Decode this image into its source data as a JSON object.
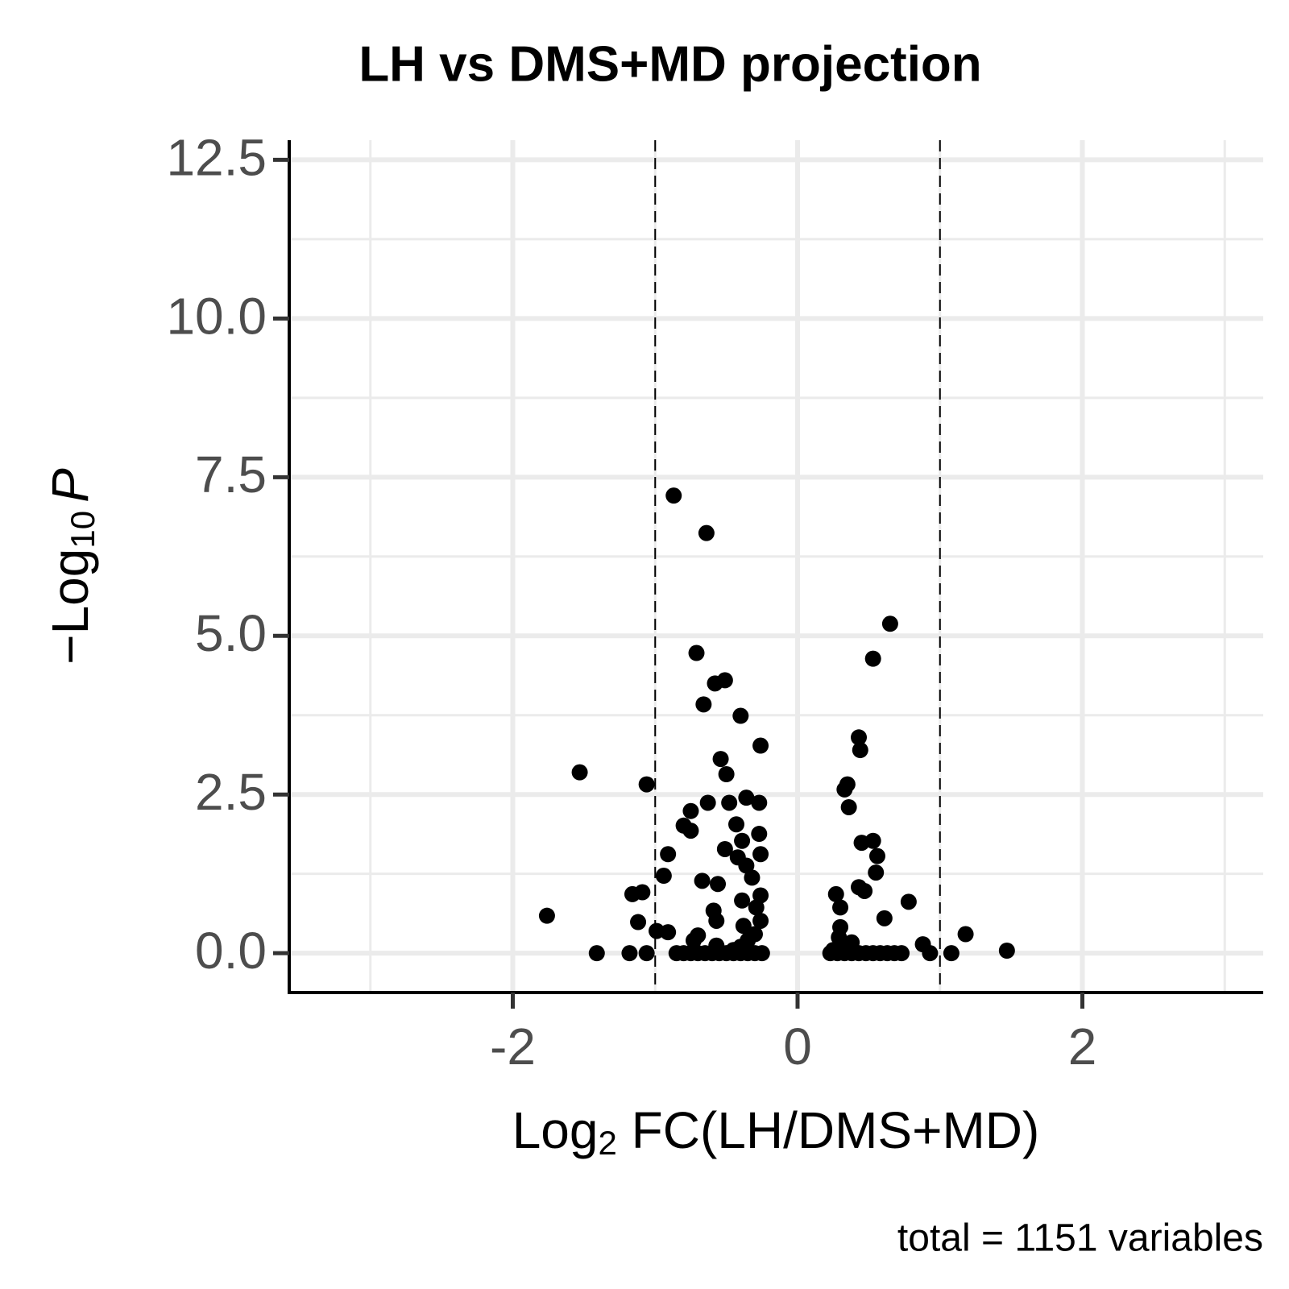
{
  "chart_data": {
    "type": "scatter",
    "title": "LH vs DMS+MD projection",
    "x_label": {
      "text": "Log",
      "subscript": "2",
      "rest": " FC(LH/DMS+MD)"
    },
    "y_label": {
      "text": "−Log",
      "subscript": "10",
      "italic": "P"
    },
    "caption": "total = 1151 variables",
    "color": "#000000",
    "xlim": [
      -3.57,
      3.27
    ],
    "ylim": [
      -0.62,
      12.81
    ],
    "xticks": [
      -2,
      0,
      2
    ],
    "yticks": [
      {
        "value": 0,
        "label": "0.0"
      },
      {
        "value": 2.5,
        "label": "2.5"
      },
      {
        "value": 5,
        "label": "5.0"
      },
      {
        "value": 7.5,
        "label": "7.5"
      },
      {
        "value": 10,
        "label": "10.0"
      },
      {
        "value": 12.5,
        "label": "12.5"
      }
    ],
    "x_minor_grid": [
      -3,
      -1,
      1,
      3
    ],
    "y_minor_grid": [
      1.25,
      3.75,
      6.25,
      8.75,
      11.25
    ],
    "cutoff_lines": [
      -1,
      1
    ],
    "grid": true,
    "x": [
      -0.87,
      -0.64,
      0.65,
      -0.71,
      0.53,
      -0.51,
      -0.58,
      -0.66,
      -0.4,
      0.43,
      0.44,
      -0.26,
      -0.54,
      -1.53,
      -0.5,
      -1.06,
      0.35,
      0.33,
      -0.36,
      -0.63,
      -0.48,
      -0.27,
      -0.75,
      0.36,
      -0.43,
      -0.8,
      -0.75,
      -0.27,
      -0.39,
      0.53,
      0.45,
      -0.51,
      -0.91,
      -0.26,
      0.56,
      -0.42,
      -0.36,
      0.55,
      -0.94,
      -0.32,
      -0.67,
      -0.56,
      0.43,
      -1.09,
      -1.16,
      0.27,
      0.47,
      -0.26,
      -0.39,
      0.78,
      0.3,
      -0.29,
      -0.59,
      -1.76,
      0.61,
      -0.57,
      -0.26,
      -1.12,
      -0.38,
      0.3,
      -0.99,
      -0.91,
      1.18,
      -0.7,
      0.29,
      -0.73,
      0.88,
      0.38,
      -0.57,
      1.47,
      -1.41,
      -1.18,
      -1.06,
      0.93,
      1.08,
      -0.85,
      -0.8,
      -0.75,
      -0.7,
      -0.65,
      -0.6,
      -0.55,
      -0.5,
      -0.45,
      -0.4,
      -0.35,
      -0.3,
      -0.25,
      0.23,
      0.28,
      0.33,
      0.38,
      0.43,
      0.48,
      0.53,
      0.58,
      0.63,
      0.68,
      0.73,
      -0.4,
      -0.35,
      -0.45,
      -0.3,
      0.25,
      0.3,
      0.35
    ],
    "values": [
      7.21,
      6.62,
      5.19,
      4.73,
      4.64,
      4.3,
      4.25,
      3.92,
      3.74,
      3.4,
      3.2,
      3.27,
      3.06,
      2.85,
      2.82,
      2.66,
      2.66,
      2.58,
      2.45,
      2.37,
      2.37,
      2.37,
      2.24,
      2.3,
      2.03,
      2.01,
      1.93,
      1.88,
      1.77,
      1.77,
      1.74,
      1.64,
      1.56,
      1.56,
      1.53,
      1.51,
      1.38,
      1.27,
      1.22,
      1.19,
      1.14,
      1.09,
      1.04,
      0.96,
      0.93,
      0.93,
      0.98,
      0.91,
      0.83,
      0.81,
      0.72,
      0.72,
      0.67,
      0.59,
      0.55,
      0.51,
      0.51,
      0.49,
      0.43,
      0.41,
      0.35,
      0.33,
      0.3,
      0.28,
      0.25,
      0.2,
      0.14,
      0.17,
      0.12,
      0.04,
      0,
      0,
      0,
      0,
      0,
      0,
      0,
      0,
      0,
      0,
      0,
      0,
      0,
      0,
      0,
      0,
      0,
      0,
      0,
      0,
      0,
      0,
      0,
      0,
      0,
      0,
      0,
      0,
      0,
      0.1,
      0.2,
      0.05,
      0.3,
      0.05,
      0.1,
      0.05
    ]
  }
}
